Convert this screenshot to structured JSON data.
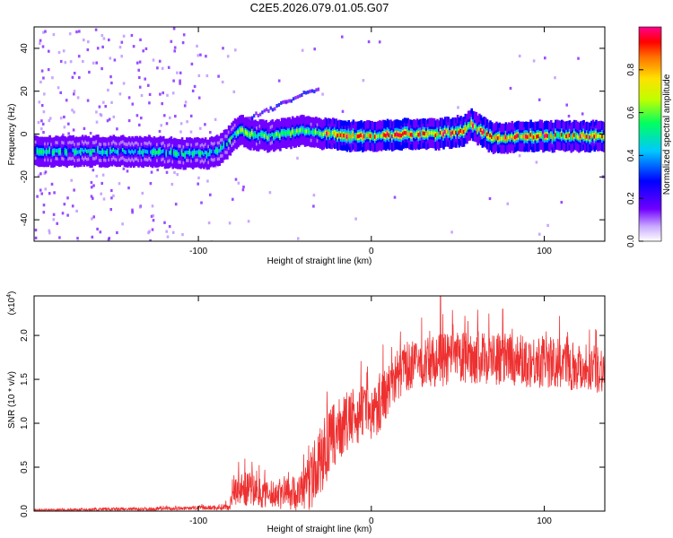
{
  "title": "C2E5.2026.079.01.05.G07",
  "chart_data": [
    {
      "type": "heatmap",
      "xlabel": "Height of straight line (km)",
      "ylabel": "Frequency (Hz)",
      "xlim": [
        -195,
        135
      ],
      "ylim": [
        -50,
        50
      ],
      "xticks": [
        -100,
        0,
        100
      ],
      "yticks": [
        -40,
        -20,
        0,
        20,
        40
      ],
      "colorbar": {
        "label": "Normalized spectral amplitude",
        "range": [
          0,
          1
        ],
        "ticks": [
          "0.0",
          "0.2",
          "0.4",
          "0.6",
          "0.8"
        ]
      },
      "ridge": {
        "x": [
          -190,
          -160,
          -130,
          -110,
          -95,
          -88,
          -82,
          -76,
          -70,
          -60,
          -50,
          -40,
          -35,
          -30,
          -20,
          -10,
          0,
          20,
          40,
          55,
          58,
          62,
          70,
          90,
          110,
          130
        ],
        "freq": [
          -8,
          -8,
          -8,
          -9,
          -9,
          -8,
          -3,
          2,
          0,
          -1,
          0,
          2,
          1,
          0,
          0,
          -1,
          -1,
          0,
          0,
          2,
          5,
          2,
          -2,
          -1,
          -1,
          -1
        ]
      },
      "colormap": [
        "#ffffff",
        "#b080ff",
        "#7000ff",
        "#0000ff",
        "#00c0ff",
        "#00ff60",
        "#c0ff00",
        "#ffa000",
        "#ff0000",
        "#ff0080"
      ]
    },
    {
      "type": "line",
      "xlabel": "Height of straight line (km)",
      "ylabel": "SNR (10 * v/v)",
      "scale_label": "(x10",
      "scale_exp": "4",
      "xlim": [
        -195,
        135
      ],
      "ylim": [
        0,
        2.45
      ],
      "xticks": [
        -100,
        0,
        100
      ],
      "yticks": [
        "0.0",
        "0.5",
        "1.0",
        "1.5",
        "2.0"
      ],
      "series": [
        {
          "name": "SNR",
          "color": "#ee3030",
          "envelope": {
            "x": [
              -195,
              -150,
              -110,
              -90,
              -82,
              -80,
              -70,
              -60,
              -50,
              -42,
              -35,
              -30,
              -25,
              -20,
              -15,
              -10,
              -5,
              0,
              5,
              10,
              15,
              20,
              30,
              40,
              60,
              80,
              100,
              120,
              135
            ],
            "mean": [
              0.01,
              0.02,
              0.03,
              0.04,
              0.05,
              0.25,
              0.25,
              0.18,
              0.22,
              0.2,
              0.35,
              0.55,
              0.75,
              0.9,
              1.0,
              1.05,
              1.15,
              1.1,
              1.25,
              1.4,
              1.55,
              1.65,
              1.68,
              1.72,
              1.75,
              1.72,
              1.7,
              1.65,
              1.62
            ],
            "spread": [
              0.01,
              0.02,
              0.02,
              0.03,
              0.04,
              0.18,
              0.2,
              0.15,
              0.2,
              0.2,
              0.35,
              0.4,
              0.4,
              0.35,
              0.35,
              0.35,
              0.3,
              0.3,
              0.35,
              0.3,
              0.3,
              0.28,
              0.28,
              0.3,
              0.3,
              0.3,
              0.3,
              0.28,
              0.28
            ],
            "peaks": [
              {
                "x": 40,
                "y": 2.45
              },
              {
                "x": 76,
                "y": 2.3
              },
              {
                "x": 68,
                "y": 2.25
              },
              {
                "x": 130,
                "y": 2.05
              }
            ]
          }
        }
      ]
    }
  ]
}
